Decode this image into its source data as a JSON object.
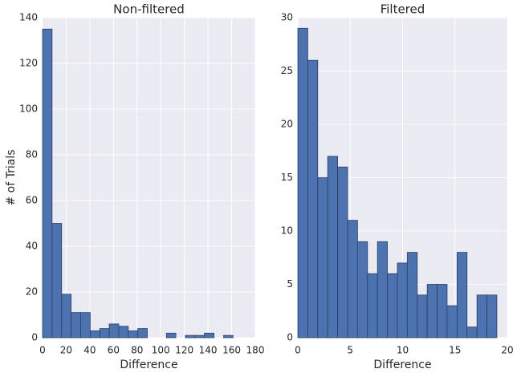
{
  "chart_data": [
    {
      "type": "histogram",
      "title": "Non-filtered",
      "xlabel": "Difference",
      "ylabel": "# of Trials",
      "bins": [
        0,
        8.06,
        16.12,
        24.18,
        32.24,
        40.3,
        48.36,
        56.42,
        64.48,
        72.54,
        80.6,
        88.66,
        96.72,
        104.78,
        112.84,
        120.9,
        128.96,
        137.02,
        145.08,
        153.14,
        161.2
      ],
      "counts": [
        135,
        50,
        19,
        11,
        11,
        3,
        4,
        6,
        5,
        3,
        4,
        0,
        0,
        2,
        0,
        1,
        1,
        2,
        0,
        1
      ],
      "color": "#4c72b0",
      "xlim": [
        0,
        180
      ],
      "ylim": [
        0,
        140
      ],
      "xticks": [
        0,
        20,
        40,
        60,
        80,
        100,
        120,
        140,
        160,
        180
      ],
      "yticks": [
        0,
        20,
        40,
        60,
        80,
        100,
        120,
        140
      ],
      "grid": true
    },
    {
      "type": "histogram",
      "title": "Filtered",
      "xlabel": "Difference",
      "bins": [
        0,
        0.95,
        1.9,
        2.85,
        3.8,
        4.75,
        5.7,
        6.65,
        7.6,
        8.55,
        9.5,
        10.45,
        11.4,
        12.35,
        13.3,
        14.25,
        15.2,
        16.15,
        17.1,
        18.05,
        19
      ],
      "counts": [
        29,
        26,
        15,
        17,
        16,
        11,
        9,
        6,
        9,
        6,
        7,
        8,
        4,
        5,
        5,
        3,
        8,
        1,
        4,
        4
      ],
      "color": "#4c72b0",
      "xlim": [
        0,
        20
      ],
      "ylim": [
        0,
        30
      ],
      "xticks": [
        0,
        5,
        10,
        15,
        20
      ],
      "yticks": [
        0,
        5,
        10,
        15,
        20,
        25,
        30
      ],
      "grid": true
    }
  ]
}
